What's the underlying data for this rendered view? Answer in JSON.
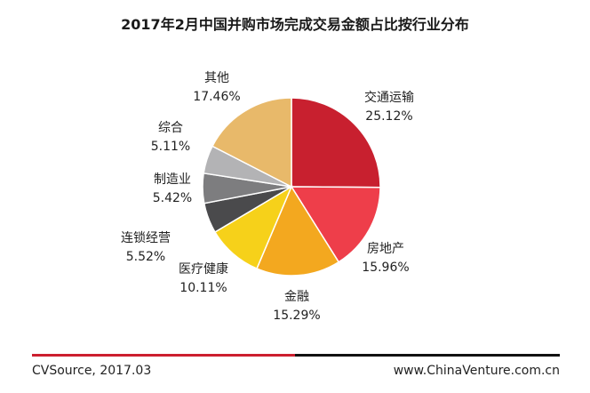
{
  "chart_data": {
    "type": "pie",
    "title": "2017年2月中国并购市场完成交易金额占比按行业分布",
    "slices": [
      {
        "label": "交通运输",
        "value": 25.12,
        "value_text": "25.12%",
        "color": "#c8202f"
      },
      {
        "label": "房地产",
        "value": 15.96,
        "value_text": "15.96%",
        "color": "#ee3e4a"
      },
      {
        "label": "金融",
        "value": 15.29,
        "value_text": "15.29%",
        "color": "#f3a81f"
      },
      {
        "label": "医疗健康",
        "value": 10.11,
        "value_text": "10.11%",
        "color": "#f6d11a"
      },
      {
        "label": "连锁经营",
        "value": 5.52,
        "value_text": "5.52%",
        "color": "#4a4a4c"
      },
      {
        "label": "制造业",
        "value": 5.42,
        "value_text": "5.42%",
        "color": "#7d7d7f"
      },
      {
        "label": "综合",
        "value": 5.11,
        "value_text": "5.11%",
        "color": "#b3b3b5"
      },
      {
        "label": "其他",
        "value": 17.46,
        "value_text": "17.46%",
        "color": "#e8b96a"
      }
    ],
    "start_angle": "12 o'clock",
    "direction": "clockwise"
  },
  "footer": {
    "source": "CVSource, 2017.03",
    "website": "www.ChinaVenture.com.cn"
  }
}
